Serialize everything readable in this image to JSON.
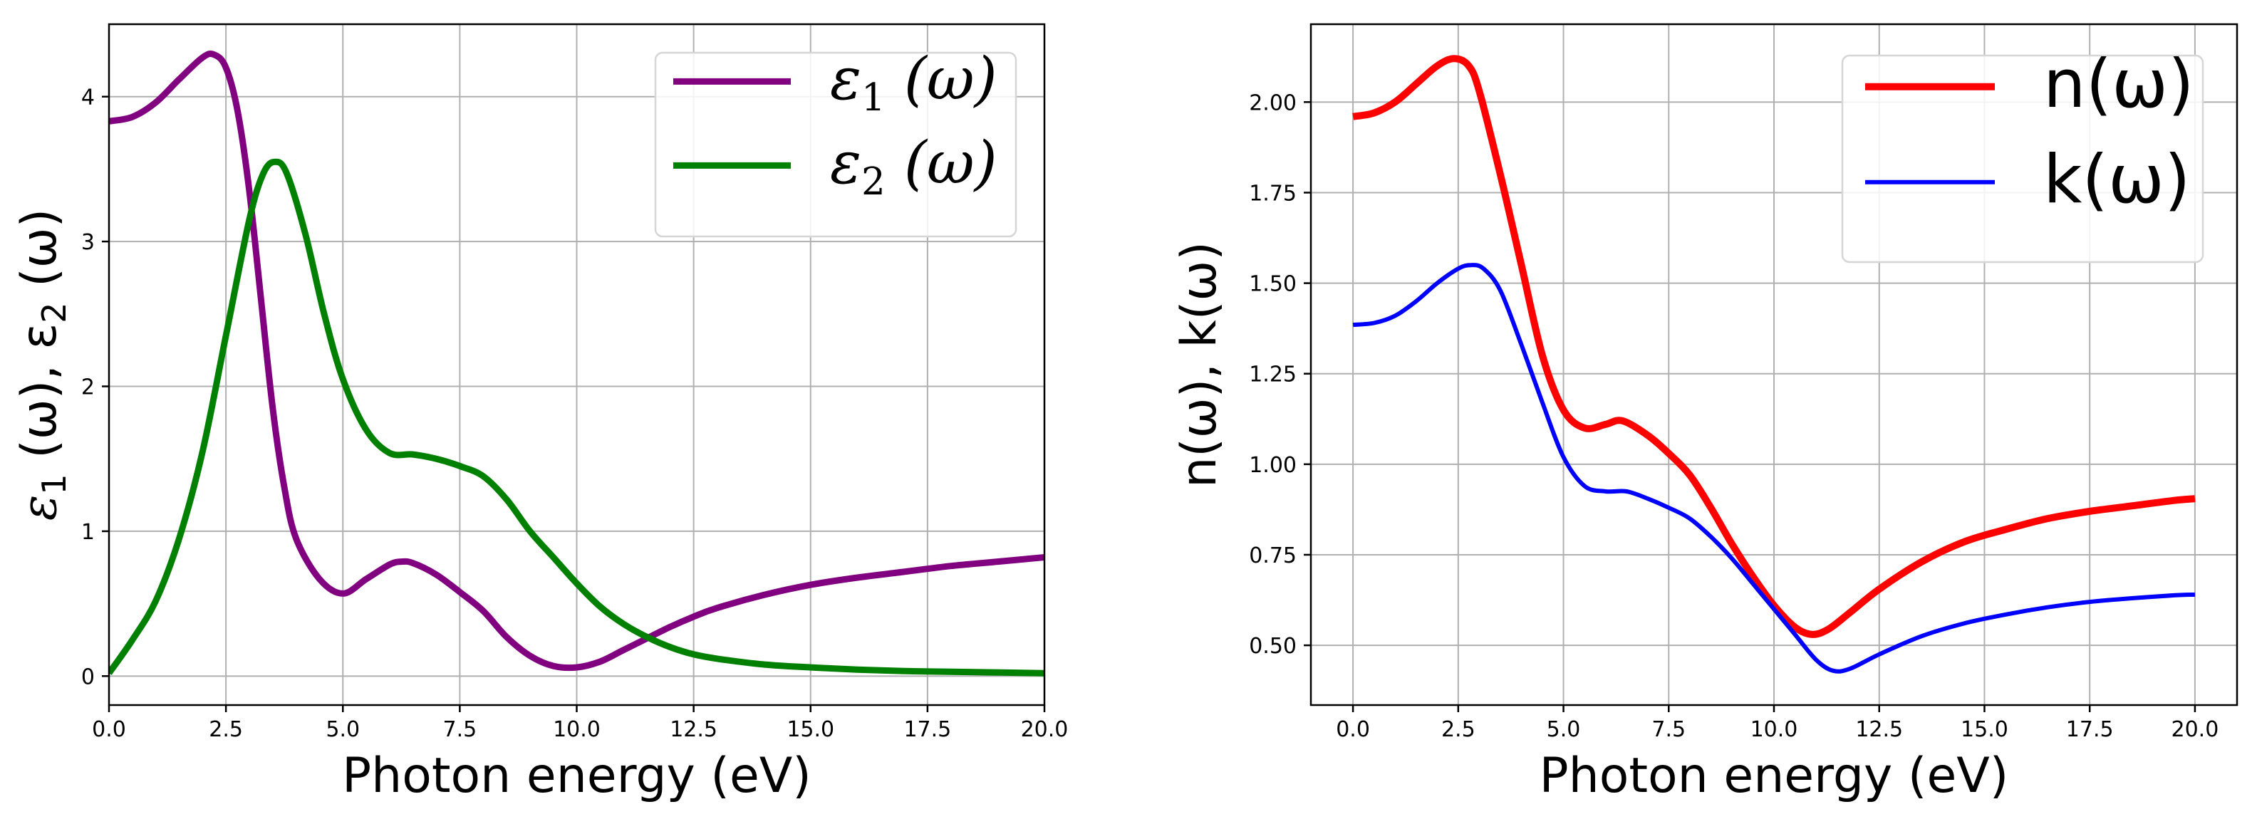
{
  "chart_data": [
    {
      "type": "line",
      "id": "dielectric",
      "xlabel": "Photon energy (eV)",
      "ylabel": {
        "main": "ε",
        "sub1": "1",
        "mid": " (ω), ε",
        "sub2": "2",
        "end": " (ω)"
      },
      "xlim": [
        0,
        20
      ],
      "ylim": [
        -0.2,
        4.5
      ],
      "grid": true,
      "legend": "top-right",
      "xticks": [
        0,
        2.5,
        5,
        7.5,
        10,
        12.5,
        15,
        17.5,
        20
      ],
      "xtick_labels": [
        "0.0",
        "2.5",
        "5.0",
        "7.5",
        "10.0",
        "12.5",
        "15.0",
        "17.5",
        "20.0"
      ],
      "yticks": [
        0,
        1,
        2,
        3,
        4
      ],
      "ytick_labels": [
        "0",
        "1",
        "2",
        "3",
        "4"
      ],
      "series": [
        {
          "name": "ε₁ (ω)",
          "legend_main": "ε",
          "legend_sub": "1",
          "legend_rest": " (ω)",
          "color": "#800080",
          "width": 9,
          "points": [
            [
              0,
              3.83
            ],
            [
              0.5,
              3.86
            ],
            [
              1.0,
              3.96
            ],
            [
              1.5,
              4.12
            ],
            [
              2.0,
              4.27
            ],
            [
              2.25,
              4.29
            ],
            [
              2.5,
              4.2
            ],
            [
              2.75,
              3.9
            ],
            [
              3.0,
              3.35
            ],
            [
              3.25,
              2.6
            ],
            [
              3.5,
              1.85
            ],
            [
              3.75,
              1.3
            ],
            [
              4.0,
              0.95
            ],
            [
              4.5,
              0.67
            ],
            [
              5.0,
              0.57
            ],
            [
              5.5,
              0.67
            ],
            [
              6.0,
              0.77
            ],
            [
              6.25,
              0.79
            ],
            [
              6.5,
              0.78
            ],
            [
              7.0,
              0.7
            ],
            [
              7.5,
              0.58
            ],
            [
              8.0,
              0.45
            ],
            [
              8.5,
              0.27
            ],
            [
              9.0,
              0.14
            ],
            [
              9.5,
              0.07
            ],
            [
              10.0,
              0.06
            ],
            [
              10.5,
              0.1
            ],
            [
              11.0,
              0.18
            ],
            [
              11.5,
              0.26
            ],
            [
              12.0,
              0.34
            ],
            [
              12.5,
              0.41
            ],
            [
              13.0,
              0.47
            ],
            [
              14.0,
              0.56
            ],
            [
              15.0,
              0.63
            ],
            [
              16.0,
              0.68
            ],
            [
              17.0,
              0.72
            ],
            [
              18.0,
              0.76
            ],
            [
              19.0,
              0.79
            ],
            [
              20.0,
              0.82
            ]
          ]
        },
        {
          "name": "ε₂ (ω)",
          "legend_main": "ε",
          "legend_sub": "2",
          "legend_rest": " (ω)",
          "color": "#008000",
          "width": 9,
          "points": [
            [
              0,
              0.02
            ],
            [
              0.5,
              0.25
            ],
            [
              1.0,
              0.52
            ],
            [
              1.5,
              0.95
            ],
            [
              2.0,
              1.55
            ],
            [
              2.5,
              2.35
            ],
            [
              3.0,
              3.15
            ],
            [
              3.3,
              3.47
            ],
            [
              3.55,
              3.55
            ],
            [
              3.8,
              3.47
            ],
            [
              4.2,
              3.05
            ],
            [
              4.6,
              2.5
            ],
            [
              5.0,
              2.05
            ],
            [
              5.5,
              1.7
            ],
            [
              6.0,
              1.54
            ],
            [
              6.5,
              1.53
            ],
            [
              7.0,
              1.5
            ],
            [
              7.5,
              1.45
            ],
            [
              8.0,
              1.38
            ],
            [
              8.5,
              1.22
            ],
            [
              9.0,
              1.0
            ],
            [
              9.5,
              0.82
            ],
            [
              10.0,
              0.64
            ],
            [
              10.5,
              0.48
            ],
            [
              11.0,
              0.36
            ],
            [
              11.5,
              0.27
            ],
            [
              12.0,
              0.2
            ],
            [
              12.5,
              0.15
            ],
            [
              13.0,
              0.12
            ],
            [
              14.0,
              0.08
            ],
            [
              15.0,
              0.06
            ],
            [
              16.0,
              0.045
            ],
            [
              17.0,
              0.035
            ],
            [
              18.0,
              0.03
            ],
            [
              20.0,
              0.02
            ]
          ]
        }
      ]
    },
    {
      "type": "line",
      "id": "refractive",
      "xlabel": "Photon energy (eV)",
      "ylabel": {
        "text": "n(ω), k(ω)"
      },
      "xlim": [
        -1,
        21
      ],
      "ylim": [
        0.335,
        2.215
      ],
      "grid": true,
      "legend": "top-right",
      "xticks": [
        0,
        2.5,
        5,
        7.5,
        10,
        12.5,
        15,
        17.5,
        20
      ],
      "xtick_labels": [
        "0.0",
        "2.5",
        "5.0",
        "7.5",
        "10.0",
        "12.5",
        "15.0",
        "17.5",
        "20.0"
      ],
      "yticks": [
        0.5,
        0.75,
        1.0,
        1.25,
        1.5,
        1.75,
        2.0
      ],
      "ytick_labels": [
        "0.50",
        "0.75",
        "1.00",
        "1.25",
        "1.50",
        "1.75",
        "2.00"
      ],
      "series": [
        {
          "name": "n(ω)",
          "legend_main": "n(ω)",
          "color": "#ff0000",
          "width": 10,
          "points": [
            [
              0,
              1.96
            ],
            [
              0.5,
              1.97
            ],
            [
              1.0,
              2.0
            ],
            [
              1.5,
              2.05
            ],
            [
              2.0,
              2.1
            ],
            [
              2.4,
              2.12
            ],
            [
              2.75,
              2.1
            ],
            [
              3.0,
              2.03
            ],
            [
              3.5,
              1.8
            ],
            [
              4.0,
              1.55
            ],
            [
              4.5,
              1.3
            ],
            [
              5.0,
              1.15
            ],
            [
              5.5,
              1.1
            ],
            [
              6.0,
              1.11
            ],
            [
              6.4,
              1.12
            ],
            [
              7.0,
              1.08
            ],
            [
              7.5,
              1.03
            ],
            [
              8.0,
              0.97
            ],
            [
              8.5,
              0.88
            ],
            [
              9.0,
              0.78
            ],
            [
              9.5,
              0.69
            ],
            [
              10.0,
              0.61
            ],
            [
              10.5,
              0.55
            ],
            [
              10.9,
              0.53
            ],
            [
              11.3,
              0.545
            ],
            [
              11.8,
              0.59
            ],
            [
              12.5,
              0.655
            ],
            [
              13.5,
              0.73
            ],
            [
              14.5,
              0.785
            ],
            [
              15.5,
              0.82
            ],
            [
              16.5,
              0.85
            ],
            [
              17.5,
              0.87
            ],
            [
              18.5,
              0.885
            ],
            [
              19.5,
              0.9
            ],
            [
              20.0,
              0.905
            ]
          ]
        },
        {
          "name": "k(ω)",
          "legend_main": "k(ω)",
          "color": "#0000ff",
          "width": 6,
          "points": [
            [
              0,
              1.385
            ],
            [
              0.5,
              1.39
            ],
            [
              1.0,
              1.41
            ],
            [
              1.5,
              1.45
            ],
            [
              2.0,
              1.5
            ],
            [
              2.5,
              1.54
            ],
            [
              2.8,
              1.55
            ],
            [
              3.1,
              1.54
            ],
            [
              3.5,
              1.48
            ],
            [
              4.0,
              1.33
            ],
            [
              4.5,
              1.17
            ],
            [
              5.0,
              1.02
            ],
            [
              5.5,
              0.94
            ],
            [
              6.0,
              0.925
            ],
            [
              6.5,
              0.925
            ],
            [
              7.0,
              0.905
            ],
            [
              7.5,
              0.88
            ],
            [
              8.0,
              0.85
            ],
            [
              8.5,
              0.8
            ],
            [
              9.0,
              0.74
            ],
            [
              9.5,
              0.67
            ],
            [
              10.0,
              0.6
            ],
            [
              10.5,
              0.53
            ],
            [
              11.0,
              0.46
            ],
            [
              11.4,
              0.43
            ],
            [
              11.8,
              0.435
            ],
            [
              12.5,
              0.475
            ],
            [
              13.5,
              0.525
            ],
            [
              14.5,
              0.56
            ],
            [
              15.5,
              0.585
            ],
            [
              16.5,
              0.605
            ],
            [
              17.5,
              0.62
            ],
            [
              18.5,
              0.63
            ],
            [
              19.5,
              0.638
            ],
            [
              20.0,
              0.64
            ]
          ]
        }
      ]
    }
  ]
}
